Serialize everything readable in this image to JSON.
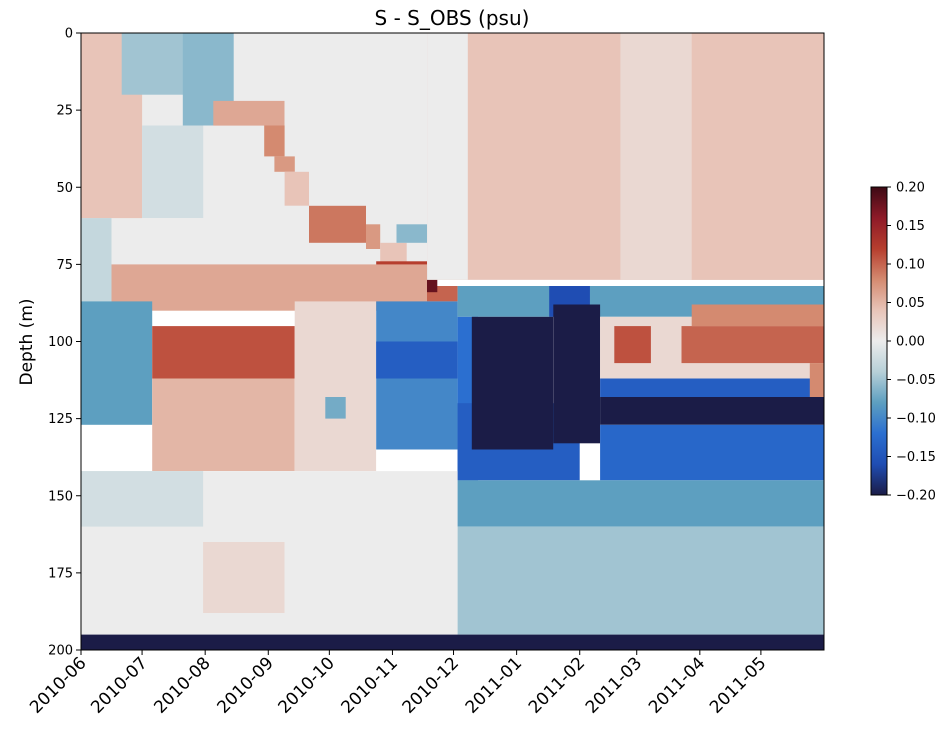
{
  "chart_data": {
    "type": "heatmap",
    "title": "S - S_OBS (psu)",
    "xlabel": "",
    "ylabel": "Depth (m)",
    "x_range": [
      "2010-06-01",
      "2011-05-31"
    ],
    "x_tick_labels": [
      "2010-06",
      "2010-07",
      "2010-08",
      "2010-09",
      "2010-10",
      "2010-11",
      "2010-12",
      "2011-01",
      "2011-02",
      "2011-03",
      "2011-04",
      "2011-05"
    ],
    "x_tick_dates": [
      "2010-06-01",
      "2010-07-01",
      "2010-08-01",
      "2010-09-01",
      "2010-10-01",
      "2010-11-01",
      "2010-12-01",
      "2011-01-01",
      "2011-02-01",
      "2011-03-01",
      "2011-04-01",
      "2011-05-01"
    ],
    "ylim": [
      200,
      0
    ],
    "y_ticks": [
      0,
      25,
      50,
      75,
      100,
      125,
      150,
      175,
      200
    ],
    "y_tick_labels": [
      "0",
      "25",
      "50",
      "75",
      "100",
      "125",
      "150",
      "175",
      "200"
    ],
    "colorbar": {
      "min": -0.2,
      "max": 0.2,
      "ticks": [
        0.2,
        0.15,
        0.1,
        0.05,
        0.0,
        -0.05,
        -0.1,
        -0.15,
        -0.2
      ],
      "tick_labels": [
        "0.20",
        "0.15",
        "0.10",
        "0.05",
        "0.00",
        "−0.05",
        "−0.10",
        "−0.15",
        "−0.20"
      ],
      "colormap": "balance (diverging blue-white-red)",
      "colors": [
        "#1b1c47",
        "#1f4db3",
        "#2b6fd0",
        "#5d9fc0",
        "#b7d0d8",
        "#ececec",
        "#e8c4b8",
        "#d48a70",
        "#b63e2e",
        "#8e1a28",
        "#3d0a14"
      ]
    },
    "grid": false,
    "regions": [
      {
        "t0": 0,
        "t1": 365,
        "d0": 0,
        "d1": 80,
        "v": 0.0
      },
      {
        "t0": 0,
        "t1": 30,
        "d0": 0,
        "d1": 60,
        "v": 0.04
      },
      {
        "t0": 20,
        "t1": 70,
        "d0": 0,
        "d1": 20,
        "v": -0.05
      },
      {
        "t0": 50,
        "t1": 75,
        "d0": 0,
        "d1": 30,
        "v": -0.06
      },
      {
        "t0": 30,
        "t1": 60,
        "d0": 30,
        "d1": 60,
        "v": -0.02
      },
      {
        "t0": 65,
        "t1": 100,
        "d0": 22,
        "d1": 30,
        "v": 0.06
      },
      {
        "t0": 90,
        "t1": 100,
        "d0": 30,
        "d1": 40,
        "v": 0.08
      },
      {
        "t0": 95,
        "t1": 105,
        "d0": 40,
        "d1": 45,
        "v": 0.07
      },
      {
        "t0": 100,
        "t1": 112,
        "d0": 45,
        "d1": 56,
        "v": 0.04
      },
      {
        "t0": 112,
        "t1": 140,
        "d0": 56,
        "d1": 68,
        "v": 0.09
      },
      {
        "t0": 140,
        "t1": 147,
        "d0": 62,
        "d1": 70,
        "v": 0.07
      },
      {
        "t0": 147,
        "t1": 160,
        "d0": 68,
        "d1": 76,
        "v": 0.04
      },
      {
        "t0": 155,
        "t1": 175,
        "d0": 62,
        "d1": 68,
        "v": -0.06
      },
      {
        "t0": 145,
        "t1": 170,
        "d0": 74,
        "d1": 82,
        "v": 0.12
      },
      {
        "t0": 160,
        "t1": 185,
        "d0": 82,
        "d1": 87,
        "v": 0.1
      },
      {
        "t0": 165,
        "t1": 175,
        "d0": 76,
        "d1": 84,
        "v": 0.18
      },
      {
        "t0": 170,
        "t1": 365,
        "d0": 0,
        "d1": 80,
        "v": 0.04
      },
      {
        "t0": 170,
        "t1": 190,
        "d0": 0,
        "d1": 80,
        "v": 0.0
      },
      {
        "t0": 265,
        "t1": 365,
        "d0": 0,
        "d1": 80,
        "v": 0.02
      },
      {
        "t0": 300,
        "t1": 365,
        "d0": 0,
        "d1": 80,
        "v": 0.04
      },
      {
        "t0": 0,
        "t1": 15,
        "d0": 60,
        "d1": 90,
        "v": -0.03
      },
      {
        "t0": 15,
        "t1": 170,
        "d0": 75,
        "d1": 90,
        "v": 0.06
      },
      {
        "t0": 0,
        "t1": 35,
        "d0": 87,
        "d1": 127,
        "v": -0.08
      },
      {
        "t0": 35,
        "t1": 105,
        "d0": 95,
        "d1": 112,
        "v": 0.11
      },
      {
        "t0": 35,
        "t1": 105,
        "d0": 112,
        "d1": 142,
        "v": 0.05
      },
      {
        "t0": 105,
        "t1": 145,
        "d0": 87,
        "d1": 142,
        "v": 0.02
      },
      {
        "t0": 120,
        "t1": 130,
        "d0": 118,
        "d1": 125,
        "v": -0.07
      },
      {
        "t0": 145,
        "t1": 185,
        "d0": 87,
        "d1": 135,
        "v": -0.1
      },
      {
        "t0": 145,
        "t1": 185,
        "d0": 100,
        "d1": 112,
        "v": -0.14
      },
      {
        "t0": 185,
        "t1": 365,
        "d0": 82,
        "d1": 92,
        "v": -0.08
      },
      {
        "t0": 230,
        "t1": 250,
        "d0": 82,
        "d1": 92,
        "v": -0.16
      },
      {
        "t0": 185,
        "t1": 195,
        "d0": 92,
        "d1": 145,
        "v": -0.12
      },
      {
        "t0": 185,
        "t1": 245,
        "d0": 120,
        "d1": 145,
        "v": -0.14
      },
      {
        "t0": 192,
        "t1": 232,
        "d0": 92,
        "d1": 135,
        "v": -0.2
      },
      {
        "t0": 232,
        "t1": 255,
        "d0": 88,
        "d1": 133,
        "v": -0.2
      },
      {
        "t0": 255,
        "t1": 365,
        "d0": 118,
        "d1": 127,
        "v": -0.2
      },
      {
        "t0": 255,
        "t1": 365,
        "d0": 112,
        "d1": 118,
        "v": -0.14
      },
      {
        "t0": 255,
        "t1": 365,
        "d0": 127,
        "d1": 145,
        "v": -0.13
      },
      {
        "t0": 255,
        "t1": 365,
        "d0": 92,
        "d1": 112,
        "v": 0.02
      },
      {
        "t0": 262,
        "t1": 280,
        "d0": 95,
        "d1": 107,
        "v": 0.11
      },
      {
        "t0": 295,
        "t1": 365,
        "d0": 95,
        "d1": 107,
        "v": 0.1
      },
      {
        "t0": 300,
        "t1": 365,
        "d0": 88,
        "d1": 95,
        "v": 0.08
      },
      {
        "t0": 358,
        "t1": 365,
        "d0": 107,
        "d1": 118,
        "v": 0.08
      },
      {
        "t0": 0,
        "t1": 185,
        "d0": 142,
        "d1": 195,
        "v": 0.0
      },
      {
        "t0": 60,
        "t1": 100,
        "d0": 165,
        "d1": 188,
        "v": 0.02
      },
      {
        "t0": 0,
        "t1": 60,
        "d0": 142,
        "d1": 160,
        "v": -0.02
      },
      {
        "t0": 185,
        "t1": 365,
        "d0": 145,
        "d1": 160,
        "v": -0.08
      },
      {
        "t0": 185,
        "t1": 365,
        "d0": 160,
        "d1": 195,
        "v": -0.05
      },
      {
        "t0": 0,
        "t1": 365,
        "d0": 195,
        "d1": 200,
        "v": -0.2
      }
    ]
  }
}
